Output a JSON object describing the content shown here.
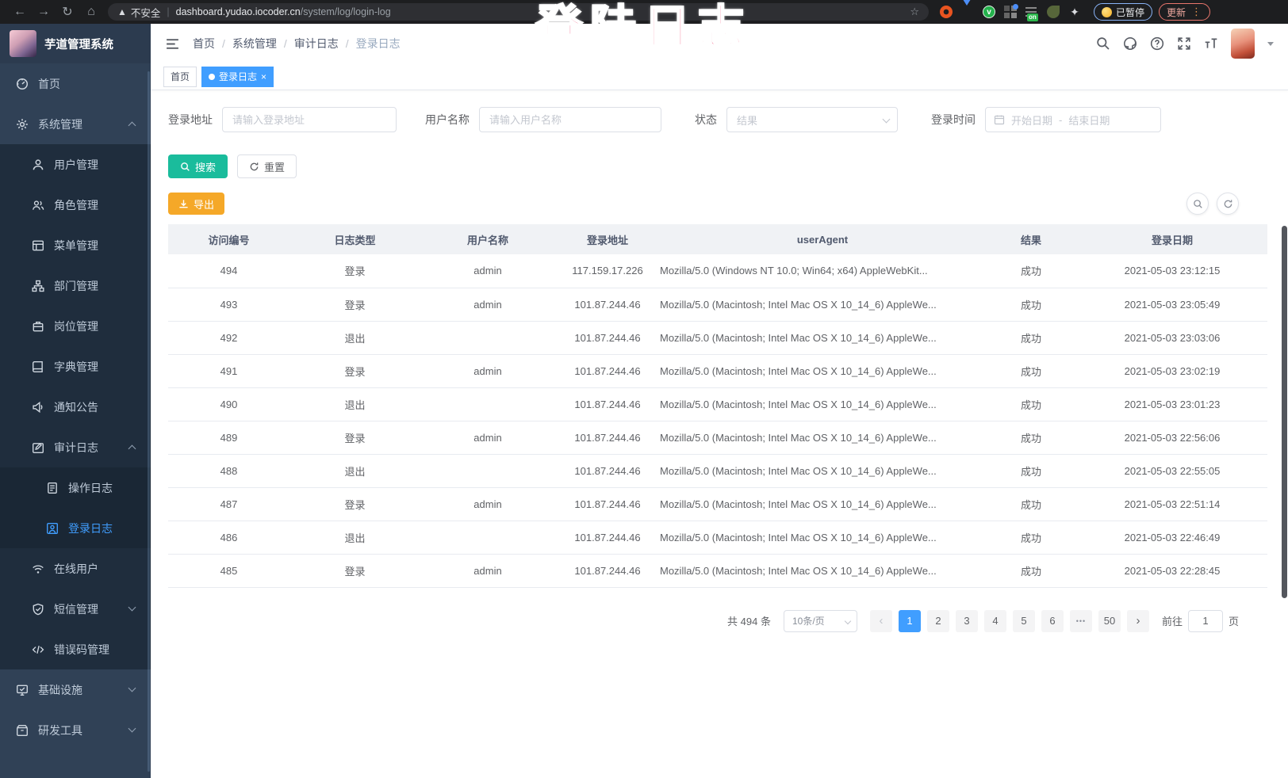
{
  "browser": {
    "warning_label": "不安全",
    "url_host": "dashboard.yudao.iocoder.cn",
    "url_path": "/system/log/login-log",
    "paused_label": "已暂停",
    "update_label": "更新"
  },
  "overlay": {
    "title": "登陆日志"
  },
  "sidebar": {
    "app_title": "芋道管理系统",
    "menu": [
      {
        "id": "home",
        "label": "首页",
        "icon": "dashboard",
        "level": 1
      },
      {
        "id": "system-management",
        "label": "系统管理",
        "icon": "gear",
        "level": 1,
        "chevron": "up"
      },
      {
        "id": "user-management",
        "label": "用户管理",
        "icon": "user",
        "level": 2
      },
      {
        "id": "role-management",
        "label": "角色管理",
        "icon": "users",
        "level": 2
      },
      {
        "id": "menu-management",
        "label": "菜单管理",
        "icon": "menu",
        "level": 2
      },
      {
        "id": "dept-management",
        "label": "部门管理",
        "icon": "tree",
        "level": 2
      },
      {
        "id": "post-management",
        "label": "岗位管理",
        "icon": "post",
        "level": 2
      },
      {
        "id": "dict-management",
        "label": "字典管理",
        "icon": "dict",
        "level": 2
      },
      {
        "id": "notice-announcement",
        "label": "通知公告",
        "icon": "notice",
        "level": 2
      },
      {
        "id": "audit-log",
        "label": "审计日志",
        "icon": "audit",
        "level": 2,
        "chevron": "up"
      },
      {
        "id": "operation-log",
        "label": "操作日志",
        "icon": "doc",
        "level": 3
      },
      {
        "id": "login-log",
        "label": "登录日志",
        "icon": "loginlog",
        "level": 3,
        "active": true
      },
      {
        "id": "online-users",
        "label": "在线用户",
        "icon": "online",
        "level": 2
      },
      {
        "id": "sms-management",
        "label": "短信管理",
        "icon": "sms",
        "level": 2,
        "chevron": "down"
      },
      {
        "id": "error-code-management",
        "label": "错误码管理",
        "icon": "code",
        "level": 2
      },
      {
        "id": "infrastructure",
        "label": "基础设施",
        "icon": "infra",
        "level": 1,
        "chevron": "down"
      },
      {
        "id": "dev-tools",
        "label": "研发工具",
        "icon": "tools",
        "level": 1,
        "chevron": "down"
      }
    ]
  },
  "header": {
    "breadcrumb": [
      "首页",
      "系统管理",
      "审计日志",
      "登录日志"
    ]
  },
  "tags": [
    {
      "label": "首页",
      "active": false
    },
    {
      "label": "登录日志",
      "active": true,
      "close": "×"
    }
  ],
  "filters": {
    "login_address_label": "登录地址",
    "login_address_placeholder": "请输入登录地址",
    "username_label": "用户名称",
    "username_placeholder": "请输入用户名称",
    "status_label": "状态",
    "status_placeholder": "结果",
    "login_time_label": "登录时间",
    "date_start_placeholder": "开始日期",
    "date_separator": "-",
    "date_end_placeholder": "结束日期",
    "search_label": "搜索",
    "reset_label": "重置",
    "export_label": "导出"
  },
  "table": {
    "columns": [
      "访问编号",
      "日志类型",
      "用户名称",
      "登录地址",
      "userAgent",
      "结果",
      "登录日期"
    ],
    "rows": [
      [
        "494",
        "登录",
        "admin",
        "117.159.17.226",
        "Mozilla/5.0 (Windows NT 10.0; Win64; x64) AppleWebKit...",
        "成功",
        "2021-05-03 23:12:15"
      ],
      [
        "493",
        "登录",
        "admin",
        "101.87.244.46",
        "Mozilla/5.0 (Macintosh; Intel Mac OS X 10_14_6) AppleWe...",
        "成功",
        "2021-05-03 23:05:49"
      ],
      [
        "492",
        "退出",
        "",
        "101.87.244.46",
        "Mozilla/5.0 (Macintosh; Intel Mac OS X 10_14_6) AppleWe...",
        "成功",
        "2021-05-03 23:03:06"
      ],
      [
        "491",
        "登录",
        "admin",
        "101.87.244.46",
        "Mozilla/5.0 (Macintosh; Intel Mac OS X 10_14_6) AppleWe...",
        "成功",
        "2021-05-03 23:02:19"
      ],
      [
        "490",
        "退出",
        "",
        "101.87.244.46",
        "Mozilla/5.0 (Macintosh; Intel Mac OS X 10_14_6) AppleWe...",
        "成功",
        "2021-05-03 23:01:23"
      ],
      [
        "489",
        "登录",
        "admin",
        "101.87.244.46",
        "Mozilla/5.0 (Macintosh; Intel Mac OS X 10_14_6) AppleWe...",
        "成功",
        "2021-05-03 22:56:06"
      ],
      [
        "488",
        "退出",
        "",
        "101.87.244.46",
        "Mozilla/5.0 (Macintosh; Intel Mac OS X 10_14_6) AppleWe...",
        "成功",
        "2021-05-03 22:55:05"
      ],
      [
        "487",
        "登录",
        "admin",
        "101.87.244.46",
        "Mozilla/5.0 (Macintosh; Intel Mac OS X 10_14_6) AppleWe...",
        "成功",
        "2021-05-03 22:51:14"
      ],
      [
        "486",
        "退出",
        "",
        "101.87.244.46",
        "Mozilla/5.0 (Macintosh; Intel Mac OS X 10_14_6) AppleWe...",
        "成功",
        "2021-05-03 22:46:49"
      ],
      [
        "485",
        "登录",
        "admin",
        "101.87.244.46",
        "Mozilla/5.0 (Macintosh; Intel Mac OS X 10_14_6) AppleWe...",
        "成功",
        "2021-05-03 22:28:45"
      ]
    ]
  },
  "pagination": {
    "total_label": "共 494 条",
    "page_size": "10条/页",
    "prev": "‹",
    "next": "›",
    "pages": [
      "1",
      "2",
      "3",
      "4",
      "5",
      "6",
      "•••",
      "50"
    ],
    "active_page": "1",
    "goto_label": "前往",
    "goto_value": "1",
    "page_unit": "页"
  },
  "colors": {
    "accent": "#409EFF",
    "sidebar_bg": "#304156",
    "submenu_bg": "#1f2d3d",
    "search_button": "#1ABC9C",
    "export_button": "#F5A828",
    "overlay_pink": "#f0416d"
  }
}
